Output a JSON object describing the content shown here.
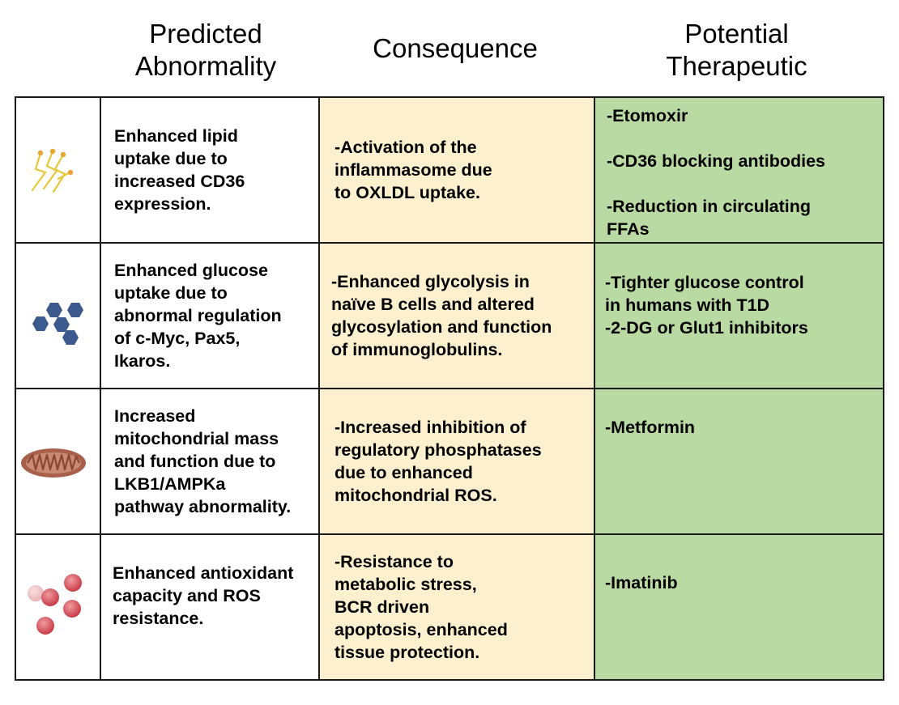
{
  "headers": {
    "abnormality": "Predicted\nAbnormality",
    "consequence": "Consequence",
    "therapeutic": "Potential\nTherapeutic"
  },
  "rows": [
    {
      "icon": "lipid-icon",
      "abnormality": "Enhanced lipid\nuptake due to\nincreased CD36\nexpression.",
      "consequence": "-Activation of the\ninflammasome due\nto OXLDL uptake.",
      "therapeutic": "-Etomoxir\n\n-CD36 blocking antibodies\n\n-Reduction in circulating\nFFAs"
    },
    {
      "icon": "glucose-hexagons-icon",
      "abnormality": "Enhanced glucose\nuptake due to\nabnormal regulation\nof c-Myc, Pax5,\nIkaros.",
      "consequence": "-Enhanced glycolysis in\nnaïve B cells and altered\nglycosylation and function\nof immunoglobulins.",
      "therapeutic": "-Tighter glucose control\nin humans with T1D\n-2-DG or Glut1 inhibitors"
    },
    {
      "icon": "mitochondrion-icon",
      "abnormality": "Increased\nmitochondrial mass\nand function due to\nLKB1/AMPKa\npathway abnormality.",
      "consequence": "-Increased inhibition of\nregulatory phosphatases\ndue to enhanced\nmitochondrial ROS.",
      "therapeutic": "-Metformin"
    },
    {
      "icon": "antioxidant-spheres-icon",
      "abnormality": "Enhanced antioxidant\ncapacity and ROS\nresistance.",
      "consequence": "-Resistance to\nmetabolic stress,\nBCR driven\napoptosis, enhanced\ntissue protection.",
      "therapeutic": "-Imatinib"
    }
  ],
  "colors": {
    "consequence_bg": "#fcf0cf",
    "therapeutic_bg": "#b9dba3",
    "glucose": "#3d5a8f",
    "mitochondrion": "#a9604b",
    "lipid": "#e9a531",
    "antioxidant": "#d4545e"
  }
}
